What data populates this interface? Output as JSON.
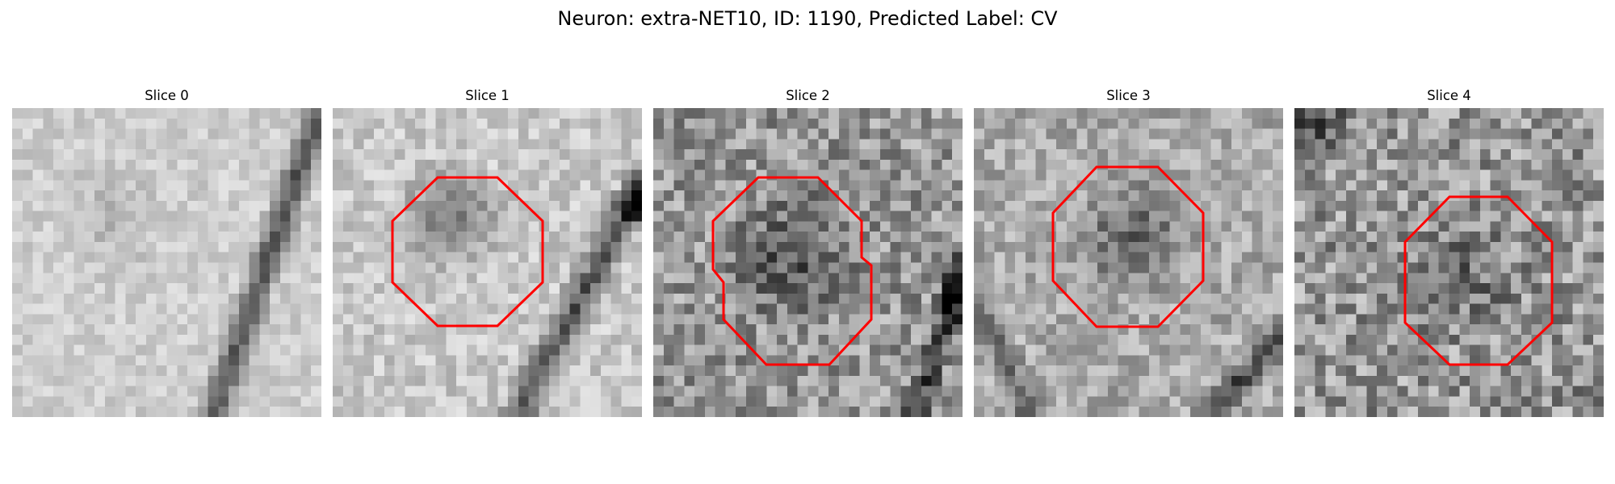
{
  "figure": {
    "title": "Neuron: extra-NET10, ID: 1190, Predicted Label: CV",
    "outline_color": "#ff0000",
    "colormap": "gray"
  },
  "panels": [
    {
      "label": "Slice 0",
      "has_outline": false
    },
    {
      "label": "Slice 1",
      "has_outline": true
    },
    {
      "label": "Slice 2",
      "has_outline": true
    },
    {
      "label": "Slice 3",
      "has_outline": true
    },
    {
      "label": "Slice 4",
      "has_outline": true
    }
  ]
}
